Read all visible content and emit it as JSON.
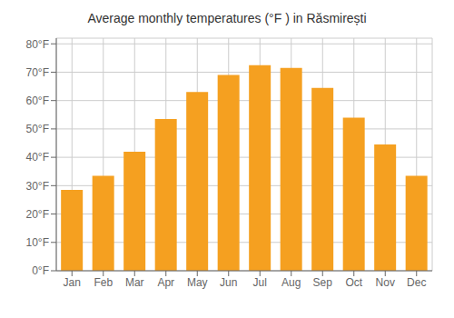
{
  "chart_data": {
    "type": "bar",
    "title": "Average monthly temperatures (°F ) in Răsmirești",
    "categories": [
      "Jan",
      "Feb",
      "Mar",
      "Apr",
      "May",
      "Jun",
      "Jul",
      "Aug",
      "Sep",
      "Oct",
      "Nov",
      "Dec"
    ],
    "values": [
      28.5,
      33.5,
      42.0,
      53.5,
      63.0,
      69.0,
      72.5,
      71.5,
      64.5,
      54.0,
      44.5,
      33.5
    ],
    "color": "#F5A020",
    "ylim": [
      0,
      82
    ],
    "yticks": [
      {
        "value": 0,
        "label": "0°F"
      },
      {
        "value": 10,
        "label": "10°F"
      },
      {
        "value": 20,
        "label": "20°F"
      },
      {
        "value": 30,
        "label": "30°F"
      },
      {
        "value": 40,
        "label": "40°F"
      },
      {
        "value": 50,
        "label": "50°F"
      },
      {
        "value": 60,
        "label": "60°F"
      },
      {
        "value": 70,
        "label": "70°F"
      },
      {
        "value": 80,
        "label": "80°F"
      }
    ],
    "grid": true
  }
}
